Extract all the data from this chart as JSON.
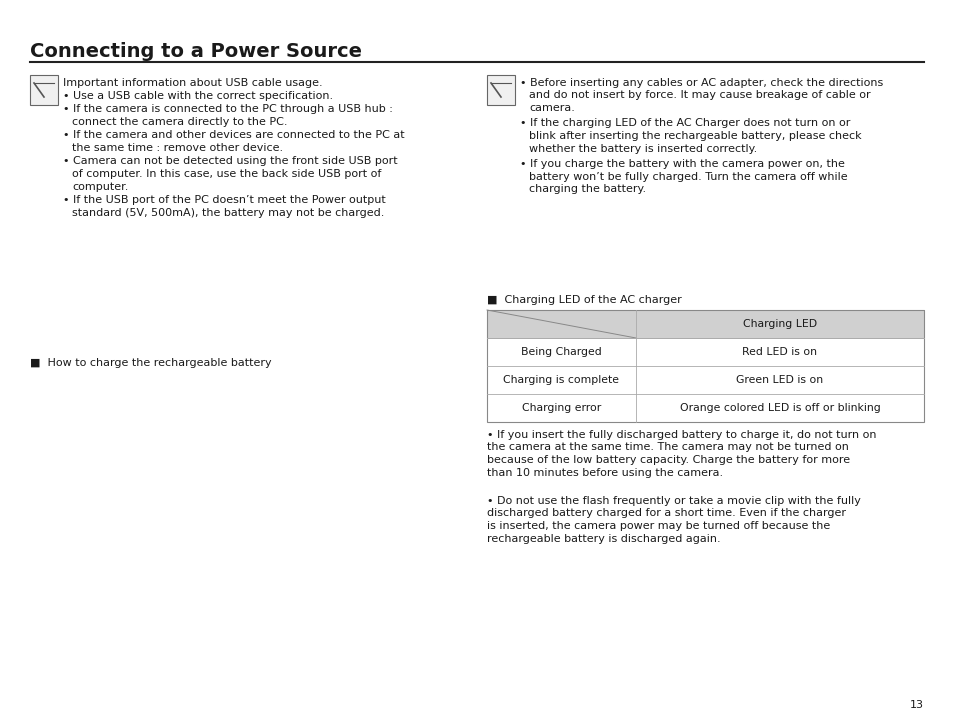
{
  "title": "Connecting to a Power Source",
  "bg_color": "#ffffff",
  "text_color": "#1a1a1a",
  "page_number": "13",
  "left_note_header": "Important information about USB cable usage.",
  "left_bullets": [
    "Use a USB cable with the correct specification.",
    "If the camera is connected to the PC through a USB hub :\nconnect the camera directly to the PC.",
    "If the camera and other devices are connected to the PC at\nthe same time : remove other device.",
    "Camera can not be detected using the front side USB port\nof computer. In this case, use the back side USB port of\ncomputer.",
    "If the USB port of the PC doesn’t meet the Power output\nstandard (5V, 500mA), the battery may not be charged."
  ],
  "right_bullets": [
    "Before inserting any cables or AC adapter, check the directions\nand do not insert by force. It may cause breakage of cable or\ncamera.",
    "If the charging LED of the AC Charger does not turn on or\nblink after inserting the rechargeable battery, please check\nwhether the battery is inserted correctly.",
    "If you charge the battery with the camera power on, the\nbattery won’t be fully charged. Turn the camera off while\ncharging the battery."
  ],
  "how_to_charge": "■  How to charge the rechargeable battery",
  "charging_led_header": "■  Charging LED of the AC charger",
  "table_header_right": "Charging LED",
  "table_rows": [
    [
      "Being Charged",
      "Red LED is on"
    ],
    [
      "Charging is complete",
      "Green LED is on"
    ],
    [
      "Charging error",
      "Orange colored LED is off or blinking"
    ]
  ],
  "table_header_bg": "#d0d0d0",
  "table_row_bg": "#ffffff",
  "bottom_text1": "• If you insert the fully discharged battery to charge it, do not turn on\nthe camera at the same time. The camera may not be turned on\nbecause of the low battery capacity. Charge the battery for more\nthan 10 minutes before using the camera.",
  "bottom_text2": "• Do not use the flash frequently or take a movie clip with the fully\ndischarged battery charged for a short time. Even if the charger\nis inserted, the camera power may be turned off because the\nrechargeable battery is discharged again."
}
